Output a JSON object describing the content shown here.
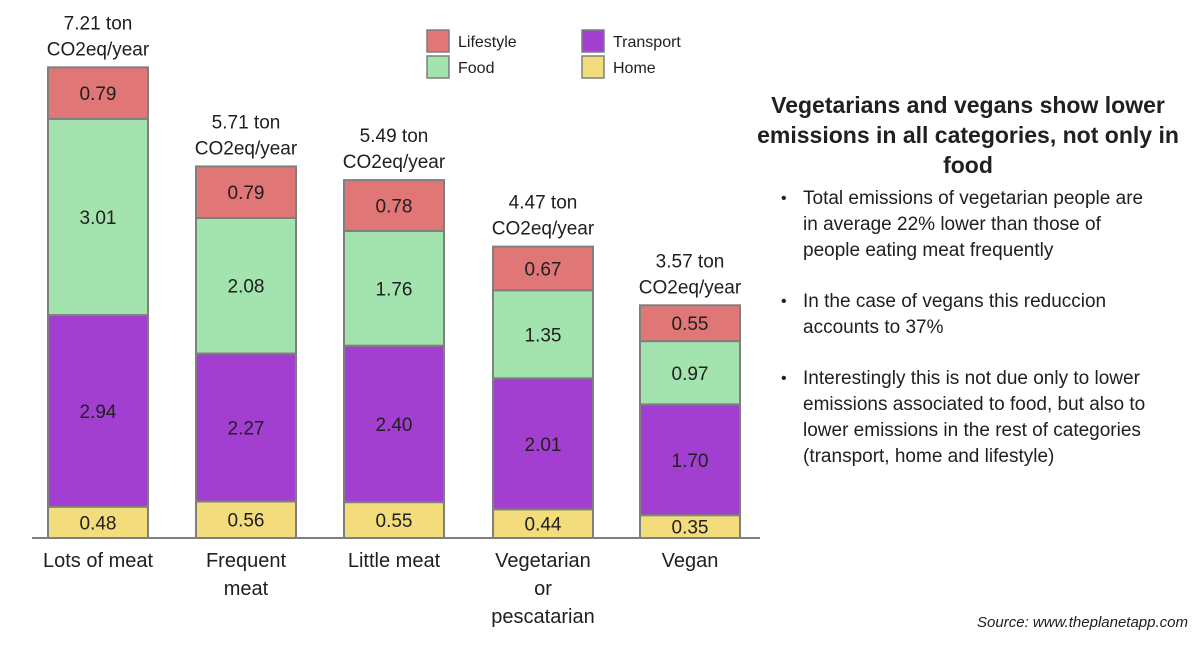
{
  "chart_data": {
    "type": "bar",
    "stacked": true,
    "categories": [
      "Lots of meat",
      "Frequent meat",
      "Little meat",
      "Vegetarian or pescatarian",
      "Vegan"
    ],
    "category_lines": [
      [
        "Lots of meat"
      ],
      [
        "Frequent",
        "meat"
      ],
      [
        "Little meat"
      ],
      [
        "Vegetarian",
        "or",
        "pescatarian"
      ],
      [
        "Vegan"
      ]
    ],
    "totals": [
      7.21,
      5.71,
      5.49,
      4.47,
      3.57
    ],
    "total_labels": [
      [
        "7.21 ton",
        "CO2eq/year"
      ],
      [
        "5.71 ton",
        "CO2eq/year"
      ],
      [
        "5.49 ton",
        "CO2eq/year"
      ],
      [
        "4.47 ton",
        "CO2eq/year"
      ],
      [
        "3.57 ton",
        "CO2eq/year"
      ]
    ],
    "series": [
      {
        "name": "Home",
        "color": "#f3dc7b",
        "values": [
          0.48,
          0.56,
          0.55,
          0.44,
          0.35
        ]
      },
      {
        "name": "Transport",
        "color": "#a33fd0",
        "values": [
          2.94,
          2.27,
          2.4,
          2.01,
          1.7
        ]
      },
      {
        "name": "Food",
        "color": "#a3e3ad",
        "values": [
          3.01,
          2.08,
          1.76,
          1.35,
          0.97
        ]
      },
      {
        "name": "Lifestyle",
        "color": "#e07676",
        "values": [
          0.79,
          0.79,
          0.78,
          0.67,
          0.55
        ]
      }
    ],
    "legend_order": [
      "Lifestyle",
      "Transport",
      "Food",
      "Home"
    ],
    "legend_placement": "top",
    "grid": false,
    "ylim": [
      0,
      7.21
    ]
  },
  "panel": {
    "headline": "Vegetarians and vegans show lower emissions in all categories, not only in food",
    "bullets": [
      "Total emissions of vegetarian people are in average 22% lower than those of people eating meat frequently",
      "In the case of vegans this reduccion accounts to 37%",
      "Interestingly this is not due only to lower emissions associated to food, but also to lower emissions in the rest of categories (transport, home and lifestyle)"
    ],
    "bullet_char": "•"
  },
  "source": "Source: www.theplanetapp.com"
}
